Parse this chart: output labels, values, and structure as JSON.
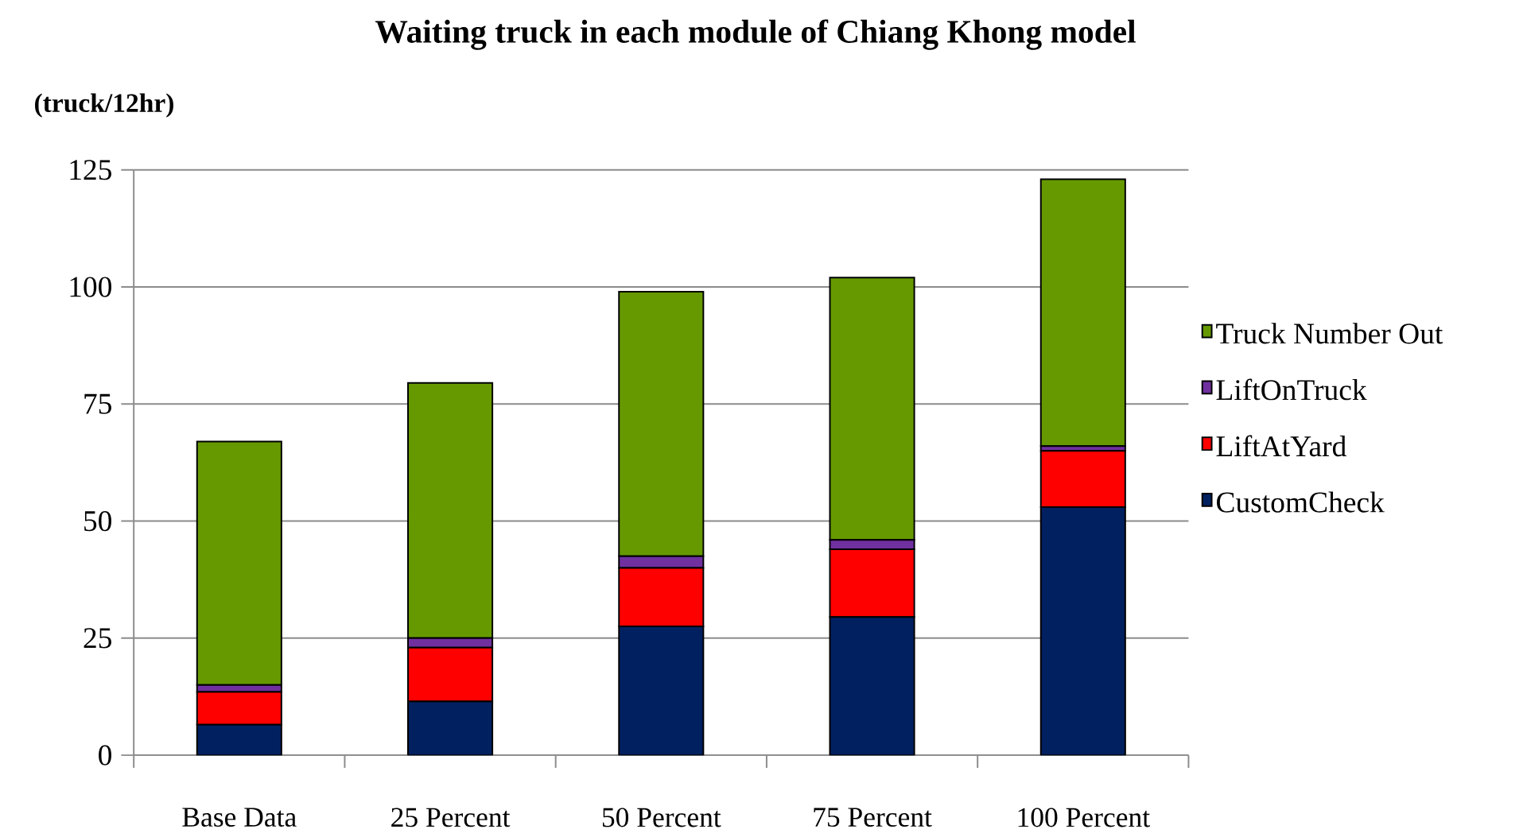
{
  "chart_data": {
    "type": "bar",
    "title": "Waiting truck in each module of Chiang Khong model",
    "ylabel": "(truck/12hr)",
    "categories": [
      "Base Data",
      "25 Percent",
      "50 Percent",
      "75 Percent",
      "100 Percent"
    ],
    "stacked": true,
    "series": [
      {
        "name": "CustomCheck",
        "color": "#002060",
        "values": [
          6.5,
          11.5,
          27.5,
          29.5,
          53
        ]
      },
      {
        "name": "LiftAtYard",
        "color": "#ff0000",
        "values": [
          7,
          11.5,
          12.5,
          14.5,
          12
        ]
      },
      {
        "name": "LiftOnTruck",
        "color": "#7030a0",
        "values": [
          1.5,
          2,
          2.5,
          2,
          1
        ]
      },
      {
        "name": "Truck Number Out",
        "color": "#669900",
        "values": [
          52,
          54.5,
          56.5,
          56,
          57
        ]
      }
    ],
    "ylim": [
      0,
      125
    ],
    "yticks": [
      0,
      25,
      50,
      75,
      100,
      125
    ],
    "grid": "y",
    "legend": "right"
  }
}
